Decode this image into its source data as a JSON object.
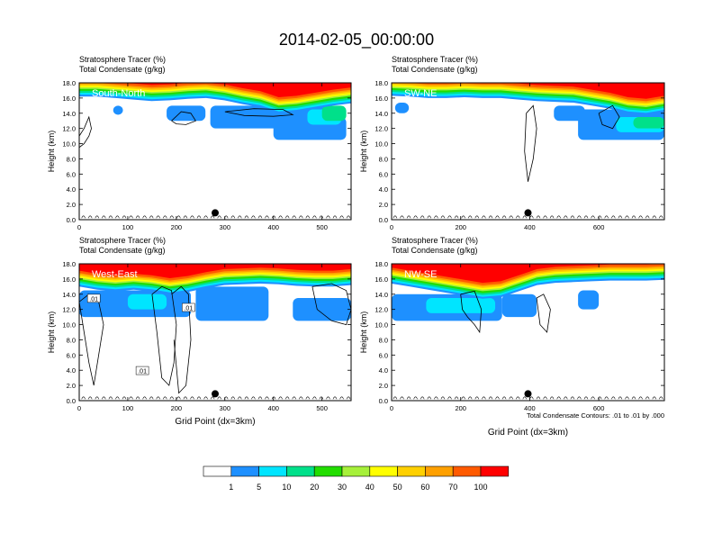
{
  "title": "2014-02-05_00:00:00",
  "footnote": "Total Condensate Contours: .01 to .01 by .000",
  "colors": {
    "levels": [
      "#ffffff",
      "#1e90ff",
      "#00e5ff",
      "#00e08a",
      "#22dd00",
      "#a6f03a",
      "#ffff00",
      "#ffd000",
      "#ffa000",
      "#ff5a00",
      "#ff0000"
    ],
    "contour": "#000000",
    "marker": "#000000"
  },
  "colorbar": {
    "labels": [
      "1",
      "5",
      "10",
      "20",
      "30",
      "40",
      "50",
      "60",
      "70",
      "100"
    ]
  },
  "chart_data": [
    {
      "type": "heatmap",
      "panel": "South-North",
      "title_lines": [
        "Stratosphere Tracer   (%)",
        "Total Condensate   (g/kg)"
      ],
      "ylabel": "Height (km)",
      "xlabel": "",
      "xlim": [
        0,
        560
      ],
      "ylim": [
        0,
        18
      ],
      "xticks": [
        "0",
        "100",
        "200",
        "300",
        "400",
        "500"
      ],
      "xtick_values": [
        0,
        100,
        200,
        300,
        400,
        500
      ],
      "yticks": [
        "0.0",
        "2.0",
        "4.0",
        "6.0",
        "8.0",
        "10.0",
        "12.0",
        "14.0",
        "16.0",
        "18.0"
      ],
      "marker": {
        "x": 280,
        "y": 0.9
      },
      "tracer_base_km": [
        16.2,
        16.2,
        16.0,
        15.8,
        15.6,
        15.7,
        15.9,
        16.0,
        15.7,
        15.2,
        14.8,
        14.0,
        14.2,
        14.6,
        15.0,
        15.3
      ],
      "cloud_patches": [
        {
          "x": [
            70,
            90
          ],
          "y": [
            13.8,
            15.0
          ],
          "level": 1
        },
        {
          "x": [
            180,
            260
          ],
          "y": [
            13.0,
            15.0
          ],
          "level": 1
        },
        {
          "x": [
            270,
            520
          ],
          "y": [
            12.0,
            15.0
          ],
          "level": 1
        },
        {
          "x": [
            400,
            550
          ],
          "y": [
            10.5,
            13.5
          ],
          "level": 1
        },
        {
          "x": [
            470,
            540
          ],
          "y": [
            12.5,
            14.5
          ],
          "level": 2
        },
        {
          "x": [
            500,
            550
          ],
          "y": [
            13.0,
            15.0
          ],
          "level": 3
        }
      ],
      "contours": [
        {
          "x": [
            0,
            10,
            20,
            25,
            20,
            10,
            0
          ],
          "y": [
            11,
            12,
            13.5,
            12,
            11,
            10,
            9.5
          ]
        },
        {
          "x": [
            190,
            210,
            230,
            240,
            220,
            200,
            190
          ],
          "y": [
            13,
            14.2,
            14,
            13,
            12.5,
            12.6,
            13
          ]
        },
        {
          "x": [
            300,
            360,
            420,
            440,
            400,
            340,
            300
          ],
          "y": [
            14.2,
            14.6,
            14.5,
            13.8,
            13.6,
            13.7,
            14.2
          ]
        }
      ]
    },
    {
      "type": "heatmap",
      "panel": "SW-NE",
      "title_lines": [
        "Stratosphere Tracer   (%)",
        "Total Condensate   (g/kg)"
      ],
      "ylabel": "Height (km)",
      "xlabel": "",
      "xlim": [
        0,
        790
      ],
      "ylim": [
        0,
        18
      ],
      "xticks": [
        "0",
        "200",
        "400",
        "600"
      ],
      "xtick_values": [
        0,
        200,
        400,
        600
      ],
      "yticks": [
        "0.0",
        "2.0",
        "4.0",
        "6.0",
        "8.0",
        "10.0",
        "12.0",
        "14.0",
        "16.0",
        "18.0"
      ],
      "marker": {
        "x": 395,
        "y": 0.9
      },
      "tracer_base_km": [
        16.3,
        16.2,
        16.0,
        16.0,
        16.1,
        16.0,
        16.0,
        15.8,
        15.6,
        15.5,
        15.4,
        15.0,
        14.6,
        14.0,
        13.8,
        14.2
      ],
      "cloud_patches": [
        {
          "x": [
            10,
            50
          ],
          "y": [
            14.0,
            15.4
          ],
          "level": 1
        },
        {
          "x": [
            470,
            560
          ],
          "y": [
            13.0,
            15.0
          ],
          "level": 1
        },
        {
          "x": [
            540,
            790
          ],
          "y": [
            10.5,
            14.5
          ],
          "level": 1
        },
        {
          "x": [
            650,
            790
          ],
          "y": [
            11.5,
            13.5
          ],
          "level": 2
        },
        {
          "x": [
            700,
            790
          ],
          "y": [
            12.0,
            13.5
          ],
          "level": 3
        }
      ],
      "contours": [
        {
          "x": [
            390,
            410,
            420,
            410,
            395,
            385,
            390
          ],
          "y": [
            14,
            15,
            12,
            8,
            5,
            9,
            14
          ]
        },
        {
          "x": [
            600,
            640,
            660,
            640,
            610,
            600
          ],
          "y": [
            14,
            15,
            13.5,
            12,
            12.5,
            14
          ]
        }
      ]
    },
    {
      "type": "heatmap",
      "panel": "West-East",
      "title_lines": [
        "Stratosphere Tracer   (%)",
        "Total Condensate   (g/kg)"
      ],
      "ylabel": "Height (km)",
      "xlabel": "Grid Point (dx=3km)",
      "xlim": [
        0,
        560
      ],
      "ylim": [
        0,
        18
      ],
      "xticks": [
        "0",
        "100",
        "200",
        "300",
        "400",
        "500"
      ],
      "xtick_values": [
        0,
        100,
        200,
        300,
        400,
        500
      ],
      "yticks": [
        "0.0",
        "2.0",
        "4.0",
        "6.0",
        "8.0",
        "10.0",
        "12.0",
        "14.0",
        "16.0",
        "18.0"
      ],
      "marker": {
        "x": 280,
        "y": 0.9
      },
      "tracer_base_km": [
        15.0,
        14.6,
        14.4,
        14.6,
        14.4,
        14.0,
        14.3,
        14.8,
        15.2,
        15.3,
        15.4,
        15.3,
        15.1,
        15.0,
        15.0,
        15.2
      ],
      "cloud_patches": [
        {
          "x": [
            0,
            230
          ],
          "y": [
            11.0,
            14.5
          ],
          "level": 1
        },
        {
          "x": [
            240,
            390
          ],
          "y": [
            10.5,
            15.0
          ],
          "level": 1
        },
        {
          "x": [
            440,
            560
          ],
          "y": [
            10.5,
            13.5
          ],
          "level": 1
        },
        {
          "x": [
            100,
            180
          ],
          "y": [
            12.0,
            14.0
          ],
          "level": 2
        }
      ],
      "contour_labels": [
        {
          "x": 30,
          "y": 13.4,
          "text": ".01"
        },
        {
          "x": 225,
          "y": 12.2,
          "text": ".01"
        },
        {
          "x": 130,
          "y": 3.9,
          "text": ".01"
        }
      ],
      "contours": [
        {
          "x": [
            0,
            20,
            40,
            50,
            40,
            30,
            20,
            10,
            0
          ],
          "y": [
            13,
            14,
            13,
            10,
            6,
            2,
            5,
            9,
            13
          ]
        },
        {
          "x": [
            150,
            170,
            190,
            200,
            195,
            185,
            170,
            160,
            150
          ],
          "y": [
            14,
            15,
            14.5,
            10,
            5,
            2,
            3,
            9,
            14
          ]
        },
        {
          "x": [
            190,
            210,
            225,
            230,
            220,
            205,
            195
          ],
          "y": [
            14,
            15,
            14,
            8,
            2,
            1,
            8
          ]
        },
        {
          "x": [
            480,
            520,
            550,
            560,
            550,
            520,
            490,
            480
          ],
          "y": [
            15,
            15.4,
            14.5,
            12,
            10,
            10.5,
            12,
            15
          ]
        }
      ]
    },
    {
      "type": "heatmap",
      "panel": "NW-SE",
      "title_lines": [
        "Stratosphere Tracer   (%)",
        "Total Condensate   (g/kg)"
      ],
      "ylabel": "Height (km)",
      "xlabel": "Grid Point (dx=3km)",
      "xlim": [
        0,
        790
      ],
      "ylim": [
        0,
        18
      ],
      "xticks": [
        "0",
        "200",
        "400",
        "600"
      ],
      "xtick_values": [
        0,
        200,
        400,
        600
      ],
      "yticks": [
        "0.0",
        "2.0",
        "4.0",
        "6.0",
        "8.0",
        "10.0",
        "12.0",
        "14.0",
        "16.0",
        "18.0"
      ],
      "marker": {
        "x": 395,
        "y": 0.9
      },
      "tracer_base_km": [
        15.4,
        15.0,
        14.6,
        14.2,
        13.8,
        13.4,
        13.6,
        14.4,
        15.2,
        15.5,
        15.6,
        15.7,
        15.8,
        15.8,
        15.8,
        15.9
      ],
      "cloud_patches": [
        {
          "x": [
            0,
            320
          ],
          "y": [
            10.5,
            14.0
          ],
          "level": 1
        },
        {
          "x": [
            100,
            300
          ],
          "y": [
            11.5,
            13.5
          ],
          "level": 2
        },
        {
          "x": [
            320,
            420
          ],
          "y": [
            11.0,
            14.0
          ],
          "level": 1
        },
        {
          "x": [
            540,
            600
          ],
          "y": [
            12.0,
            14.5
          ],
          "level": 1
        }
      ],
      "contours": [
        {
          "x": [
            200,
            240,
            260,
            255,
            240,
            220,
            205,
            200
          ],
          "y": [
            14,
            14.4,
            12,
            9,
            10,
            11,
            12,
            14
          ]
        },
        {
          "x": [
            420,
            440,
            460,
            450,
            430,
            420
          ],
          "y": [
            13.5,
            14,
            12,
            9,
            10,
            13.5
          ]
        }
      ]
    }
  ]
}
